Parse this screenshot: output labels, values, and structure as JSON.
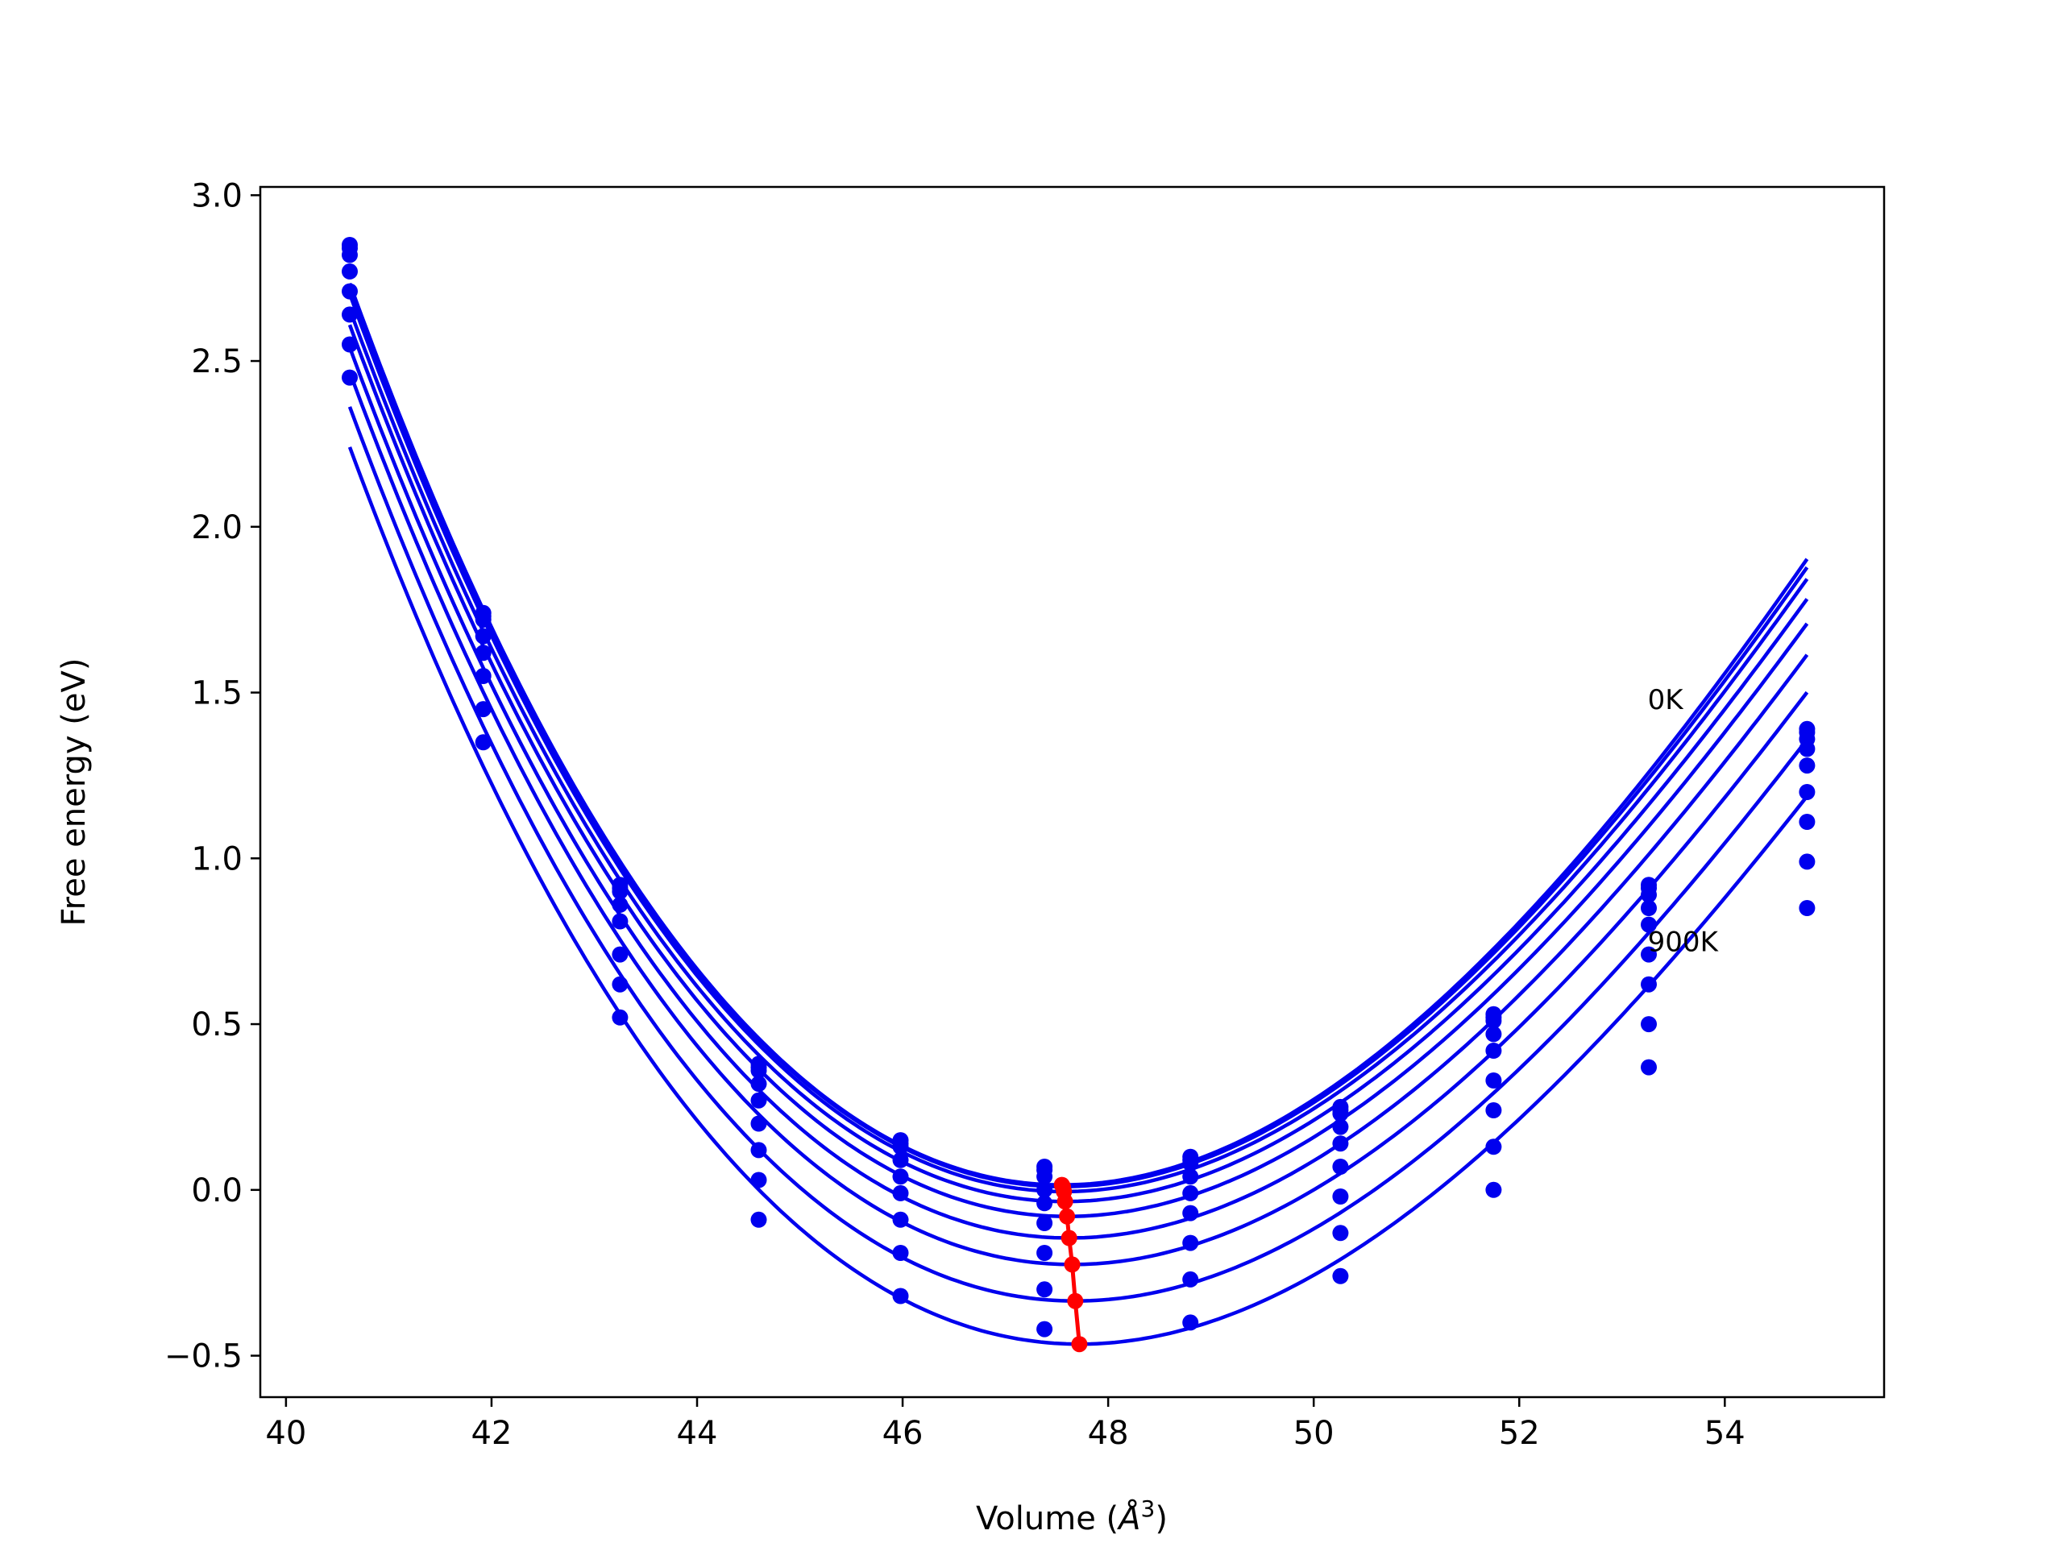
{
  "chart_data": {
    "type": "scatter",
    "title": "",
    "xlabel": "Volume (",
    "xlabel_symbol": "Å",
    "xlabel_exponent": "3",
    "xlabel_close": ")",
    "ylabel": "Free energy (eV)",
    "xlim": [
      39.75,
      55.55
    ],
    "ylim": [
      -0.625,
      3.025
    ],
    "xticks": [
      40,
      42,
      44,
      46,
      48,
      50,
      52,
      54
    ],
    "xtick_labels": [
      "40",
      "42",
      "44",
      "46",
      "48",
      "50",
      "52",
      "54"
    ],
    "yticks": [
      -0.5,
      0.0,
      0.5,
      1.0,
      1.5,
      2.0,
      2.5,
      3.0
    ],
    "ytick_labels": [
      "−0.5",
      "0.0",
      "0.5",
      "1.0",
      "1.5",
      "2.0",
      "2.5",
      "3.0"
    ],
    "grid": false,
    "annotations": [
      {
        "text": "0K",
        "x": 53.25,
        "y": 1.45
      },
      {
        "text": "900K",
        "x": 53.25,
        "y": 0.72
      }
    ],
    "volumes": [
      40.62,
      41.92,
      43.25,
      44.6,
      45.98,
      47.38,
      48.8,
      50.26,
      51.75,
      53.26,
      54.8
    ],
    "series": [
      {
        "values": [
          2.85,
          1.74,
          0.92,
          0.38,
          0.15,
          0.07,
          0.1,
          0.25,
          0.53,
          0.92,
          1.39
        ],
        "curve": {
          "V0": 47.55,
          "E0": 0.015,
          "a": 0.0465,
          "b": -0.00146
        }
      },
      {
        "values": [
          2.84,
          1.73,
          0.91,
          0.37,
          0.14,
          0.06,
          0.09,
          0.24,
          0.52,
          0.91,
          1.38
        ],
        "curve": {
          "V0": 47.56,
          "E0": 0.01,
          "a": 0.0462,
          "b": -0.00146
        }
      },
      {
        "values": [
          2.82,
          1.72,
          0.9,
          0.36,
          0.13,
          0.04,
          0.08,
          0.23,
          0.51,
          0.89,
          1.36
        ],
        "curve": {
          "V0": 47.57,
          "E0": -0.005,
          "a": 0.0459,
          "b": -0.00146
        }
      },
      {
        "values": [
          2.77,
          1.67,
          0.86,
          0.32,
          0.09,
          0.0,
          0.04,
          0.19,
          0.47,
          0.85,
          1.33
        ],
        "curve": {
          "V0": 47.58,
          "E0": -0.035,
          "a": 0.0454,
          "b": -0.00146
        }
      },
      {
        "values": [
          2.71,
          1.62,
          0.81,
          0.27,
          0.04,
          -0.04,
          -0.01,
          0.14,
          0.42,
          0.8,
          1.28
        ],
        "curve": {
          "V0": 47.6,
          "E0": -0.08,
          "a": 0.045,
          "b": -0.00146
        }
      },
      {
        "values": [
          2.64,
          1.55,
          0.71,
          0.2,
          -0.01,
          -0.1,
          -0.07,
          0.07,
          0.33,
          0.71,
          1.2
        ],
        "curve": {
          "V0": 47.62,
          "E0": -0.145,
          "a": 0.0446,
          "b": -0.00146
        }
      },
      {
        "values": [
          2.55,
          1.45,
          0.62,
          0.12,
          -0.09,
          -0.19,
          -0.16,
          -0.02,
          0.24,
          0.62,
          1.11
        ],
        "curve": {
          "V0": 47.65,
          "E0": -0.225,
          "a": 0.0442,
          "b": -0.00146
        }
      },
      {
        "values": [
          2.45,
          1.35,
          0.52,
          0.03,
          -0.19,
          -0.3,
          -0.27,
          -0.13,
          0.13,
          0.5,
          0.99
        ],
        "curve": {
          "V0": 47.68,
          "E0": -0.335,
          "a": 0.0438,
          "b": -0.00146
        }
      },
      {
        "values": [
          null,
          null,
          null,
          -0.09,
          -0.32,
          -0.42,
          -0.4,
          -0.26,
          0.0,
          0.37,
          0.85
        ],
        "curve": {
          "V0": 47.72,
          "E0": -0.465,
          "a": 0.0433,
          "b": -0.00146
        }
      }
    ],
    "minima": {
      "x": [
        47.55,
        47.56,
        47.57,
        47.58,
        47.6,
        47.62,
        47.65,
        47.68,
        47.72
      ],
      "y": [
        0.015,
        0.01,
        -0.005,
        -0.035,
        -0.08,
        -0.145,
        -0.225,
        -0.335,
        -0.465
      ]
    },
    "colors": {
      "series": "#0000ee",
      "minima": "#ff0000",
      "axes": "#000000"
    }
  }
}
